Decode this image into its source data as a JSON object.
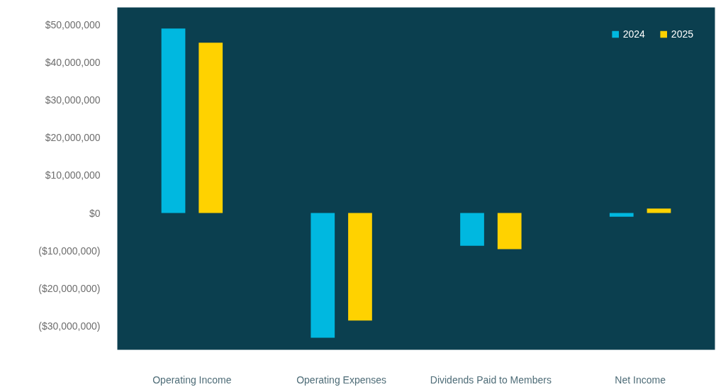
{
  "chart_data": {
    "type": "bar",
    "categories": [
      "Operating Income",
      "Operating Expenses",
      "Dividends Paid to Members",
      "Net Income"
    ],
    "series": [
      {
        "name": "2024",
        "color": "#00b8e0",
        "values": [
          49100000,
          -33200000,
          -8700000,
          -1000000
        ]
      },
      {
        "name": "2025",
        "color": "#ffd200",
        "values": [
          45300000,
          -28600000,
          -9600000,
          1200000
        ]
      }
    ],
    "ylim": [
      -36400000,
      54700000
    ],
    "yticks": [
      {
        "value": 50000000,
        "label": "$50,000,000"
      },
      {
        "value": 40000000,
        "label": "$40,000,000"
      },
      {
        "value": 30000000,
        "label": "$30,000,000"
      },
      {
        "value": 20000000,
        "label": "$20,000,000"
      },
      {
        "value": 10000000,
        "label": "$10,000,000"
      },
      {
        "value": 0,
        "label": "$0"
      },
      {
        "value": -10000000,
        "label": "($10,000,000)"
      },
      {
        "value": -20000000,
        "label": "($20,000,000)"
      },
      {
        "value": -30000000,
        "label": "($30,000,000)"
      }
    ],
    "grid": false,
    "legend": "top right"
  }
}
